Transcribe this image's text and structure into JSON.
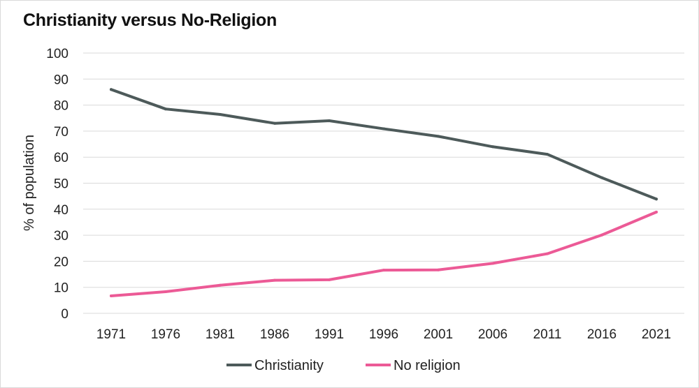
{
  "chart_data": {
    "type": "line",
    "title": "Christianity versus No-Religion",
    "xlabel": "",
    "ylabel": "% of population",
    "categories": [
      "1971",
      "1976",
      "1981",
      "1986",
      "1991",
      "1996",
      "2001",
      "2006",
      "2011",
      "2016",
      "2021"
    ],
    "ylim": [
      0,
      100
    ],
    "yticks": [
      "0",
      "10",
      "20",
      "30",
      "40",
      "50",
      "60",
      "70",
      "80",
      "90",
      "100"
    ],
    "grid": true,
    "legend_position": "bottom",
    "series": [
      {
        "name": "Christianity",
        "color": "#4d5a5a",
        "values": [
          86,
          78.5,
          76.4,
          73,
          74,
          70.9,
          68,
          64,
          61.1,
          52.1,
          43.9
        ]
      },
      {
        "name": "No religion",
        "color": "#ec5a96",
        "values": [
          6.7,
          8.3,
          10.8,
          12.7,
          12.9,
          16.6,
          16.7,
          19.2,
          22.9,
          30.1,
          38.9
        ]
      }
    ]
  }
}
